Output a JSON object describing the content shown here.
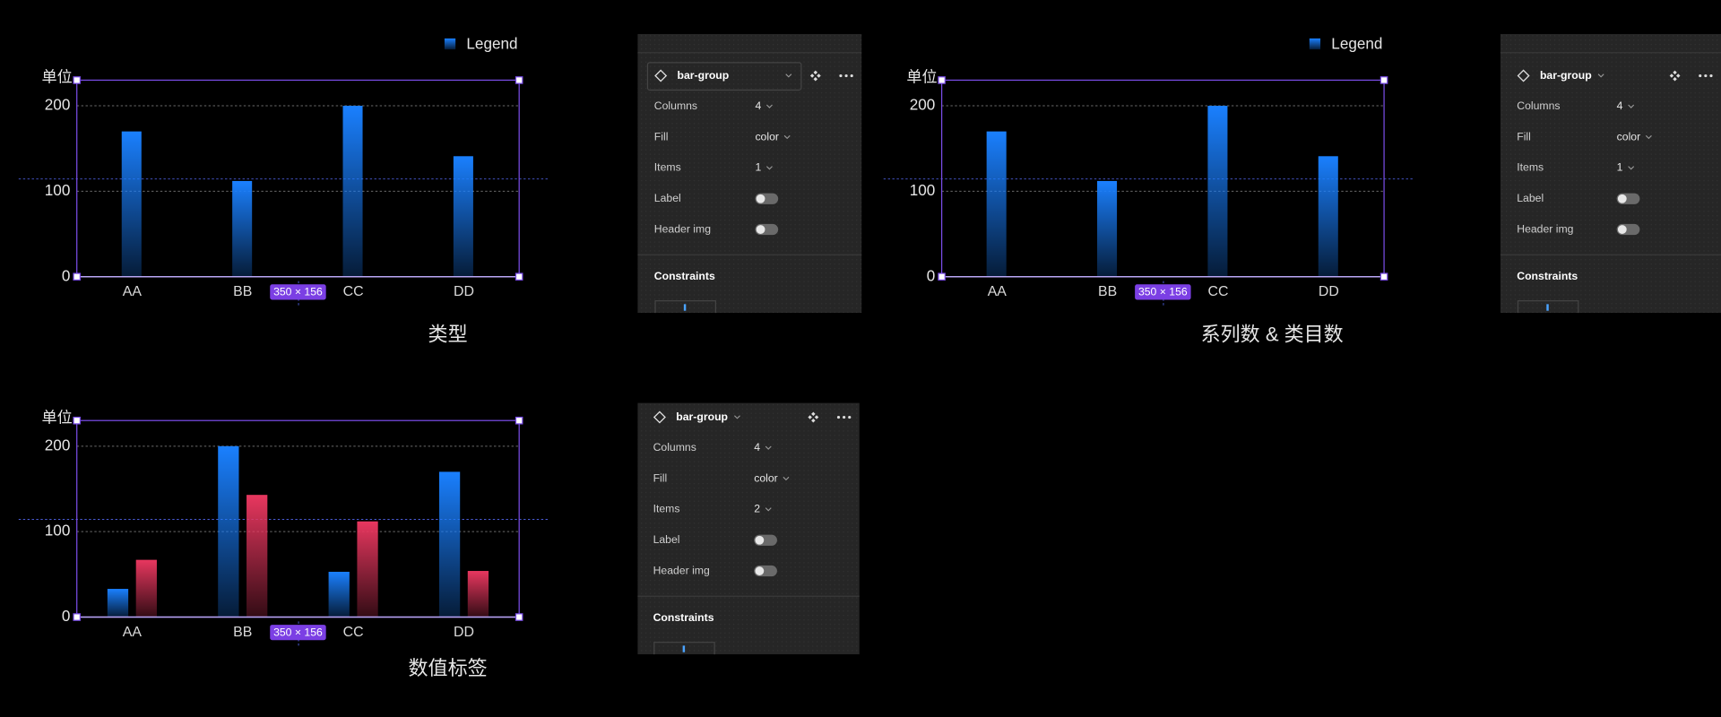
{
  "chart_data": [
    {
      "type": "bar",
      "y_label": "单位",
      "legend": true,
      "size_label": "350 × 156",
      "caption": "类型",
      "categories": [
        "AA",
        "BB",
        "CC",
        "DD"
      ],
      "series": [
        {
          "name": "Legend",
          "color": "#1a80ff",
          "values": [
            170,
            112,
            200,
            141
          ]
        }
      ],
      "ylim": [
        0,
        230
      ],
      "yticks": [
        0,
        100,
        200
      ],
      "grid": true
    },
    {
      "type": "bar",
      "y_label": "单位",
      "legend": true,
      "size_label": "350 × 156",
      "caption": "系列数 & 类目数",
      "categories": [
        "AA",
        "BB",
        "CC",
        "DD"
      ],
      "series": [
        {
          "name": "Legend",
          "color": "#1a80ff",
          "values": [
            170,
            112,
            200,
            141
          ]
        }
      ],
      "ylim": [
        0,
        230
      ],
      "yticks": [
        0,
        100,
        200
      ],
      "grid": true
    },
    {
      "type": "bar",
      "y_label": "单位",
      "legend": false,
      "size_label": "350 × 156",
      "caption": "数值标签",
      "categories": [
        "AA",
        "BB",
        "CC",
        "DD"
      ],
      "series": [
        {
          "color": "#1a80ff",
          "values": [
            33,
            200,
            53,
            170
          ]
        },
        {
          "color": "#e8375f",
          "values": [
            67,
            143,
            112,
            54
          ]
        }
      ],
      "ylim": [
        0,
        230
      ],
      "yticks": [
        0,
        100,
        200
      ],
      "grid": true
    }
  ],
  "panels": [
    {
      "title": "bar-group",
      "rows": [
        {
          "label": "Columns",
          "value": 4
        },
        {
          "label": "Fill",
          "value": "color"
        },
        {
          "label": "Items",
          "value": 1
        },
        {
          "label": "Label",
          "toggle": false
        },
        {
          "label": "Header img",
          "toggle": false
        }
      ],
      "section": "Constraints"
    },
    {
      "title": "bar-group",
      "rows": [
        {
          "label": "Columns",
          "value": 4
        },
        {
          "label": "Fill",
          "value": "color"
        },
        {
          "label": "Items",
          "value": 1
        },
        {
          "label": "Label",
          "toggle": false
        },
        {
          "label": "Header img",
          "toggle": false
        }
      ],
      "section": "Constraints"
    },
    {
      "title": "bar-group",
      "rows": [
        {
          "label": "Columns",
          "value": 4
        },
        {
          "label": "Fill",
          "value": "color"
        },
        {
          "label": "Items",
          "value": 2
        },
        {
          "label": "Label",
          "toggle": false
        },
        {
          "label": "Header img",
          "toggle": false
        }
      ],
      "section": "Constraints"
    }
  ]
}
